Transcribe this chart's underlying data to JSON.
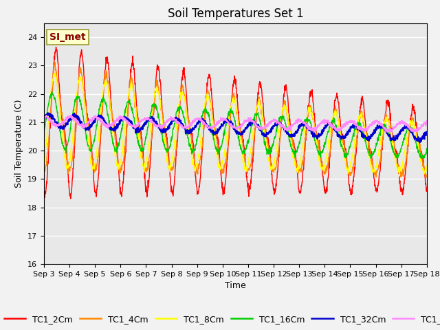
{
  "title": "Soil Temperatures Set 1",
  "xlabel": "Time",
  "ylabel": "Soil Temperature (C)",
  "ylim": [
    16.0,
    24.5
  ],
  "yticks": [
    16.0,
    17.0,
    18.0,
    19.0,
    20.0,
    21.0,
    22.0,
    23.0,
    24.0
  ],
  "series_colors": {
    "TC1_2Cm": "#ff0000",
    "TC1_4Cm": "#ff8800",
    "TC1_8Cm": "#ffff00",
    "TC1_16Cm": "#00cc00",
    "TC1_32Cm": "#0000cc",
    "TC1_50Cm": "#ff88ff"
  },
  "annotation_text": "SI_met",
  "annotation_bbox": {
    "facecolor": "#ffffcc",
    "edgecolor": "#999933",
    "linewidth": 1.2
  },
  "annotation_color": "#880000",
  "background_color": "#e8e8e8",
  "fig_facecolor": "#f2f2f2",
  "n_points": 1440,
  "start_day": 3,
  "end_day": 18,
  "title_fontsize": 12,
  "axis_label_fontsize": 9,
  "tick_label_fontsize": 8,
  "legend_fontsize": 9,
  "linewidth_shallow": 1.0,
  "linewidth_deep": 1.5
}
